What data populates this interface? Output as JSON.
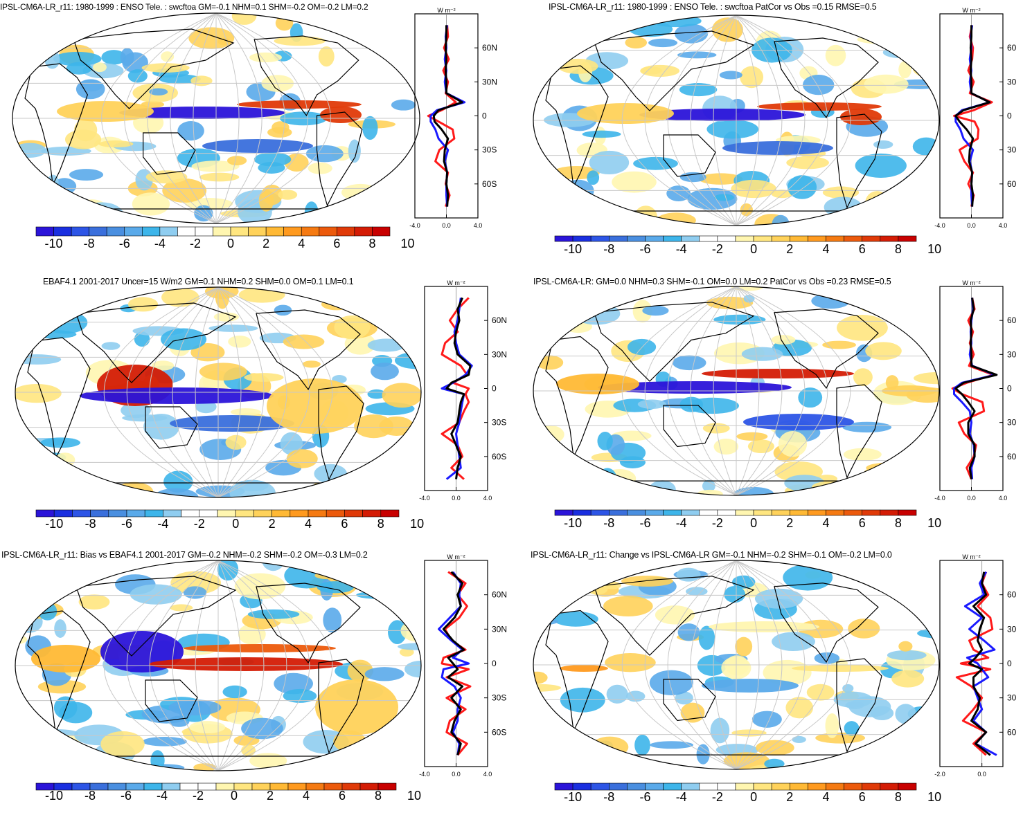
{
  "figure": {
    "colorbar": {
      "labels": [
        "-10",
        "-8",
        "-6",
        "-4",
        "-2",
        "0",
        "2",
        "4",
        "6",
        "8",
        "10"
      ],
      "colors": [
        "#2b14d9",
        "#1a2fe0",
        "#2d55e6",
        "#3a6fdc",
        "#4a8fe0",
        "#5aaaea",
        "#3db5ea",
        "#8fcdf0",
        "#ffffff",
        "#ffffff",
        "#fff6b0",
        "#ffe680",
        "#ffd25a",
        "#ffb935",
        "#ff9a1f",
        "#f57a12",
        "#ec5a0c",
        "#e03a08",
        "#d41c05",
        "#c80000"
      ]
    },
    "profile_unit": "W m⁻²",
    "lat_labels": [
      "60N",
      "30N",
      "0",
      "30S",
      "60S"
    ],
    "lat_labels_right": [
      "60",
      "30",
      "0",
      "30",
      "60"
    ]
  },
  "chart_data": [
    {
      "type": "map+line",
      "panel": "top-left",
      "title": "IPSL-CM6A-LR_r11: 1980-1999 : ENSO Tele. : swcftoa GM=-0.1 NHM=0.1 SHM=-0.2 OM=-0.2 LM=0.2",
      "profile_xlim": [
        -4.0,
        4.0
      ],
      "profile_xticks": [
        "-4.0",
        "0.0",
        "4.0"
      ],
      "zonal_lat": [
        80,
        70,
        60,
        50,
        40,
        30,
        20,
        12,
        5,
        0,
        -5,
        -12,
        -20,
        -30,
        -40,
        -50,
        -60,
        -70,
        -80
      ],
      "zonal_red": [
        0.1,
        0.2,
        -0.3,
        0.3,
        -0.4,
        0.2,
        -0.1,
        1.2,
        -0.6,
        -2.3,
        -1.0,
        0.8,
        1.0,
        -0.9,
        -1.4,
        0.2,
        -0.1,
        0.4,
        -0.1
      ],
      "zonal_blue": [
        0.1,
        -0.1,
        0.0,
        -0.2,
        0.0,
        -0.2,
        0.0,
        2.3,
        -1.2,
        -2.0,
        -2.0,
        -1.4,
        -1.0,
        0.2,
        -0.2,
        0.1,
        0.0,
        0.0,
        0.1
      ],
      "zonal_black": [
        0.0,
        0.0,
        -0.1,
        0.0,
        -0.1,
        0.0,
        0.0,
        2.0,
        -1.0,
        -1.6,
        -1.5,
        -0.6,
        0.2,
        -0.2,
        -0.3,
        0.1,
        0.0,
        0.2,
        0.1
      ]
    },
    {
      "type": "map+line",
      "panel": "top-right",
      "title": "IPSL-CM6A-LR_r11: 1980-1999 : ENSO Tele. : swcftoa PatCor vs Obs =0.15 RMSE=0.5",
      "profile_xlim": [
        -4.0,
        4.0
      ],
      "profile_xticks": [
        "-4.0",
        "0.0",
        "4.0"
      ],
      "zonal_lat": [
        80,
        70,
        60,
        50,
        40,
        30,
        20,
        12,
        5,
        0,
        -5,
        -12,
        -20,
        -30,
        -40,
        -50,
        -60,
        -70,
        -80
      ],
      "zonal_red": [
        0.1,
        -0.2,
        0.2,
        0.1,
        -0.4,
        0.3,
        -0.2,
        2.6,
        0.3,
        -2.2,
        0.4,
        0.9,
        0.8,
        -1.5,
        -0.9,
        0.2,
        -0.4,
        0.3,
        0.0
      ],
      "zonal_blue": [
        0.1,
        -0.1,
        0.0,
        -0.2,
        0.0,
        -0.2,
        0.0,
        2.3,
        -1.2,
        -2.0,
        -2.0,
        -1.4,
        -1.0,
        0.2,
        -0.2,
        0.1,
        0.0,
        0.0,
        0.1
      ],
      "zonal_black": [
        0.0,
        0.0,
        -0.1,
        0.0,
        -0.1,
        0.0,
        0.0,
        2.3,
        -1.0,
        -2.0,
        -1.5,
        -0.6,
        0.2,
        -0.2,
        -0.3,
        0.1,
        0.0,
        0.2,
        0.1
      ]
    },
    {
      "type": "map+line",
      "panel": "middle-left",
      "title": "EBAF4.1 2001-2017 Uncer=15 W/m2 GM=0.1 NHM=0.2 SHM=0.0 OM=0.1 LM=0.1",
      "profile_xlim": [
        -4.0,
        4.0
      ],
      "profile_xticks": [
        "-4.0",
        "0.0",
        "4.0"
      ],
      "zonal_lat": [
        80,
        70,
        60,
        50,
        40,
        30,
        20,
        12,
        5,
        0,
        -5,
        -12,
        -20,
        -30,
        -40,
        -50,
        -60,
        -70,
        -80
      ],
      "zonal_red": [
        1.6,
        0.2,
        -0.8,
        0.2,
        -1.4,
        -1.8,
        0.6,
        1.4,
        -0.4,
        1.6,
        1.2,
        1.6,
        1.0,
        0.4,
        -1.8,
        0.2,
        0.8,
        -0.6,
        1.0
      ],
      "zonal_blue": [
        0.6,
        0.4,
        0.2,
        -0.2,
        0.0,
        0.4,
        2.0,
        1.2,
        -0.4,
        -1.8,
        1.0,
        0.8,
        0.6,
        0.4,
        0.0,
        0.2,
        0.4,
        0.6,
        -1.2
      ],
      "zonal_black": [
        0.8,
        0.2,
        0.4,
        0.0,
        -0.2,
        0.2,
        1.8,
        1.6,
        -0.6,
        -1.2,
        1.0,
        0.6,
        0.4,
        0.2,
        -0.6,
        0.0,
        0.6,
        0.2,
        0.0
      ]
    },
    {
      "type": "map+line",
      "panel": "middle-right",
      "title": "IPSL-CM6A-LR: GM=0.0 NHM=0.3 SHM=-0.1 OM=0.0 LM=0.2 PatCor vs Obs =0.23 RMSE=0.5",
      "profile_xlim": [
        -4.0,
        4.0
      ],
      "profile_xticks": [
        "-4.0",
        "0.0",
        "4.0"
      ],
      "zonal_lat": [
        80,
        70,
        60,
        50,
        40,
        30,
        20,
        12,
        5,
        0,
        -5,
        -12,
        -20,
        -30,
        -40,
        -50,
        -60,
        -70,
        -80
      ],
      "zonal_red": [
        0.1,
        0.4,
        -0.4,
        0.2,
        -0.2,
        0.3,
        -0.3,
        2.8,
        -0.6,
        -2.4,
        -1.2,
        1.4,
        1.6,
        -1.6,
        -0.9,
        0.6,
        0.3,
        -0.6,
        0.0
      ],
      "zonal_blue": [
        0.1,
        0.2,
        0.0,
        -0.1,
        0.0,
        -0.2,
        0.1,
        3.0,
        -1.2,
        -2.2,
        -2.2,
        -1.2,
        -0.2,
        0.0,
        -0.2,
        0.3,
        0.4,
        0.0,
        0.1
      ],
      "zonal_black": [
        0.1,
        0.3,
        -0.1,
        0.0,
        -0.1,
        0.0,
        0.0,
        3.2,
        -1.0,
        -2.0,
        -1.2,
        -0.4,
        0.4,
        -0.4,
        -0.4,
        0.4,
        0.4,
        -0.2,
        0.0
      ]
    },
    {
      "type": "map+line",
      "panel": "bottom-left",
      "title": "IPSL-CM6A-LR_r11: Bias vs EBAF4.1 2001-2017 GM=-0.2 NHM=-0.2 SHM=-0.2 OM=-0.3 LM=0.2",
      "profile_xlim": [
        -4.0,
        4.0
      ],
      "profile_xticks": [
        "-4.0",
        "0.0",
        "4.0"
      ],
      "zonal_lat": [
        80,
        70,
        60,
        50,
        40,
        30,
        20,
        12,
        5,
        0,
        -5,
        -12,
        -20,
        -30,
        -40,
        -50,
        -60,
        -70,
        -80
      ],
      "zonal_red": [
        -1.0,
        1.2,
        0.2,
        1.4,
        0.4,
        -1.4,
        -0.6,
        1.2,
        -1.6,
        -1.8,
        1.6,
        -1.2,
        1.8,
        -1.2,
        1.2,
        -0.8,
        -1.2,
        1.4,
        0.2
      ],
      "zonal_blue": [
        -0.4,
        0.6,
        0.4,
        0.6,
        -0.8,
        -2.2,
        -0.6,
        0.8,
        -0.4,
        1.6,
        -1.6,
        -1.8,
        -0.2,
        0.6,
        0.2,
        0.2,
        -0.4,
        0.4,
        0.2
      ],
      "zonal_black": [
        -0.6,
        0.8,
        0.2,
        0.6,
        -0.2,
        -1.6,
        -0.4,
        1.0,
        -1.0,
        -0.4,
        0.2,
        -1.0,
        0.8,
        -0.6,
        0.6,
        -0.2,
        -0.6,
        0.6,
        0.2
      ]
    },
    {
      "type": "map+line",
      "panel": "bottom-right",
      "title": "IPSL-CM6A-LR_r11: Change vs IPSL-CM6A-LR GM=-0.1 NHM=-0.2 SHM=-0.1 OM=-0.2 LM=0.0",
      "profile_xlim": [
        -2.0,
        1.0
      ],
      "profile_xticks": [
        "-2.0",
        "0.0"
      ],
      "zonal_lat": [
        80,
        70,
        60,
        50,
        40,
        30,
        20,
        12,
        5,
        0,
        -5,
        -12,
        -20,
        -30,
        -40,
        -50,
        -60,
        -70,
        -80
      ],
      "zonal_red": [
        0.2,
        0.0,
        0.3,
        -0.2,
        0.4,
        0.5,
        -0.6,
        -0.4,
        0.3,
        -1.0,
        0.4,
        -1.2,
        -0.5,
        0.0,
        -0.4,
        -0.9,
        0.2,
        -0.4,
        0.2
      ],
      "zonal_blue": [
        0.2,
        -0.1,
        0.1,
        -0.8,
        0.0,
        -0.6,
        0.1,
        0.6,
        -0.7,
        -0.2,
        0.0,
        0.3,
        -0.4,
        -0.2,
        0.0,
        -0.4,
        0.2,
        -0.3,
        0.7
      ],
      "zonal_black": [
        0.1,
        0.0,
        0.2,
        -0.4,
        0.1,
        -0.1,
        -0.2,
        0.0,
        -0.3,
        -0.6,
        0.0,
        -0.4,
        -0.4,
        -0.1,
        -0.2,
        -0.5,
        0.2,
        -0.3,
        0.4
      ]
    }
  ]
}
